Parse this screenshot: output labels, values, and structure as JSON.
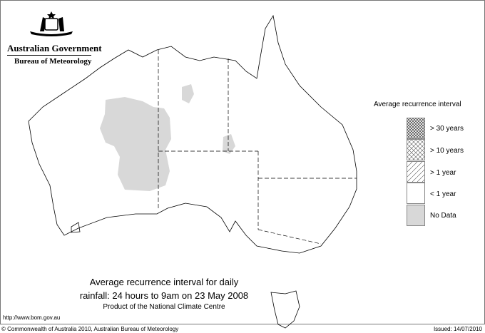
{
  "header": {
    "government": "Australian Government",
    "bureau": "Bureau of Meteorology",
    "logo": "commonwealth-coat-of-arms"
  },
  "legend": {
    "title": "Average recurrence interval",
    "items": [
      {
        "label": "> 30 years",
        "pattern": "dense-crosshatch"
      },
      {
        "label": "> 10 years",
        "pattern": "crosshatch"
      },
      {
        "label": "> 1 year",
        "pattern": "diagonal-hatch"
      },
      {
        "label": "< 1 year",
        "pattern": "white"
      },
      {
        "label": "No Data",
        "pattern": "grey",
        "color": "#d8d8d8"
      }
    ]
  },
  "title": {
    "line1": "Average recurrence interval for daily",
    "line2": "rainfall: 24 hours to 9am on 23 May 2008",
    "line3": "Product of the National Climate Centre"
  },
  "footer": {
    "url": "http://www.bom.gov.au",
    "copyright": "© Commonwealth of Australia 2010, Australian Bureau of Meteorology",
    "issued": "Issued: 14/07/2010"
  },
  "colors": {
    "no_data": "#d8d8d8",
    "outline": "#000000"
  }
}
